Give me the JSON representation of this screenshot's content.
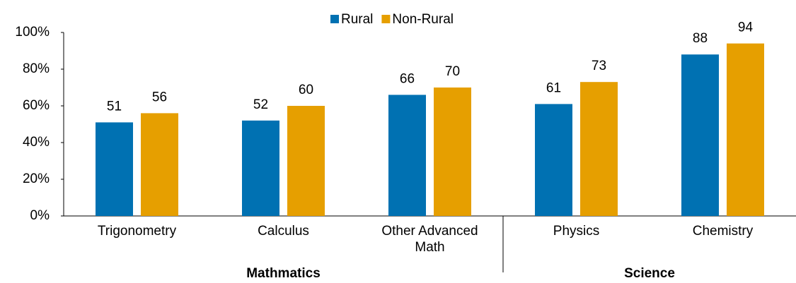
{
  "chart_data": {
    "type": "bar",
    "groups": [
      {
        "label": "Mathmatics",
        "categories": [
          "Trigonometry",
          "Calculus",
          "Other Advanced Math"
        ]
      },
      {
        "label": "Science",
        "categories": [
          "Physics",
          "Chemistry"
        ]
      }
    ],
    "series": [
      {
        "name": "Rural",
        "color": "#0071b2",
        "values": [
          51,
          52,
          66,
          61,
          88
        ]
      },
      {
        "name": "Non-Rural",
        "color": "#e69f00",
        "values": [
          56,
          60,
          70,
          73,
          94
        ]
      }
    ],
    "ylim": [
      0,
      100
    ],
    "yticks": [
      {
        "value": 0,
        "label": "0%"
      },
      {
        "value": 20,
        "label": "20%"
      },
      {
        "value": 40,
        "label": "40%"
      },
      {
        "value": 60,
        "label": "60%"
      },
      {
        "value": 80,
        "label": "80%"
      },
      {
        "value": 100,
        "label": "100%"
      }
    ],
    "legend": "top"
  }
}
